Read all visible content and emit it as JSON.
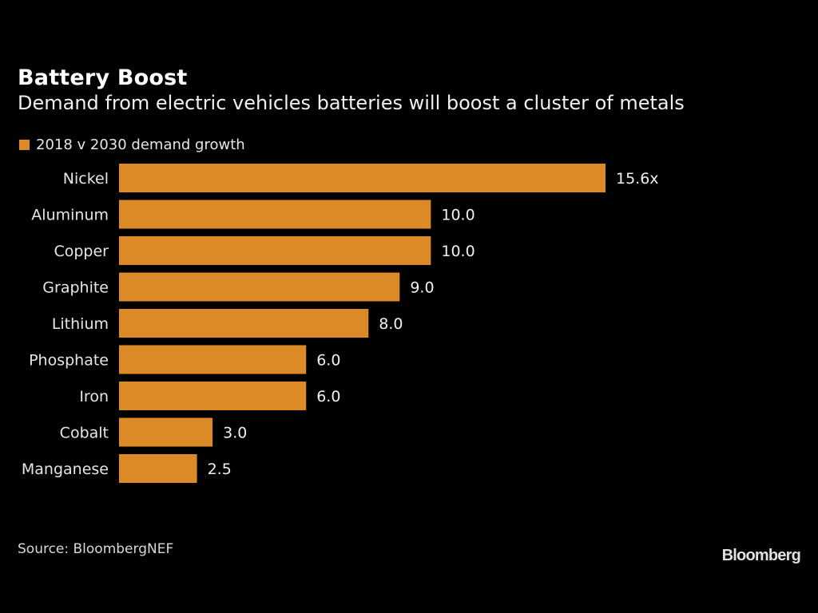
{
  "header": {
    "title": "Battery Boost",
    "subtitle": "Demand from electric vehicles batteries will boost a cluster of metals"
  },
  "footer": {
    "source": "Source: BloombergNEF",
    "logo": "Bloomberg"
  },
  "chart_data": {
    "type": "bar",
    "orientation": "horizontal",
    "title": "Battery Boost",
    "subtitle": "Demand from electric vehicles batteries will boost a cluster of metals",
    "xlabel": "",
    "ylabel": "",
    "legend": {
      "position": "top-left",
      "entries": [
        "2018 v 2030 demand growth"
      ]
    },
    "grid": false,
    "xlim": [
      0,
      15.6
    ],
    "bar_color": "#dc8a27",
    "categories": [
      "Nickel",
      "Aluminum",
      "Copper",
      "Graphite",
      "Lithium",
      "Phosphate",
      "Iron",
      "Cobalt",
      "Manganese"
    ],
    "series": [
      {
        "name": "2018 v 2030 demand growth",
        "values": [
          15.6,
          10.0,
          10.0,
          9.0,
          8.0,
          6.0,
          6.0,
          3.0,
          2.5
        ],
        "labels": [
          "15.6x",
          "10.0",
          "10.0",
          "9.0",
          "8.0",
          "6.0",
          "6.0",
          "3.0",
          "2.5"
        ]
      }
    ]
  }
}
